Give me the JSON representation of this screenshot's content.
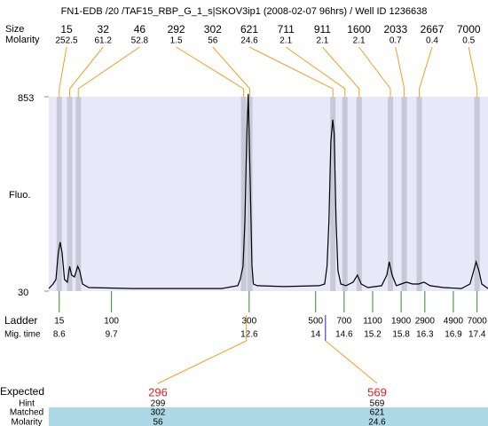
{
  "chart_data": {
    "type": "electropherogram",
    "title": "FN1-EDB /20 /TAF15_RBP_G_1_s|SKOV3ip1 (2008-02-07 96hrs) / Well ID 1236638",
    "y_label": "Fluo.",
    "ylim": [
      30,
      853
    ],
    "yticks": [
      30,
      853
    ],
    "xlim": [
      8.38,
      17.63
    ],
    "peaks": {
      "size_label": "Size",
      "molarity_label": "Molarity",
      "size": [
        15,
        32,
        46,
        292,
        302,
        621,
        711,
        911,
        1600,
        2033,
        2667,
        7000
      ],
      "molarity": [
        252.5,
        61.2,
        52.8,
        1.5,
        56,
        24.6,
        2.1,
        2.1,
        2.1,
        0.7,
        0.4,
        0.5
      ]
    },
    "ladder": {
      "label": "Ladder",
      "time_label": "Mig. time",
      "size": [
        15,
        100,
        300,
        500,
        700,
        1100,
        1900,
        2900,
        4900,
        7000
      ],
      "mig_time": [
        8.6,
        9.7,
        12.6,
        14,
        14.6,
        15.2,
        15.8,
        16.3,
        16.9,
        17.4
      ]
    },
    "trace": {
      "color": "#000000",
      "x": [
        8.38,
        8.47,
        8.53,
        8.58,
        8.62,
        8.66,
        8.71,
        8.77,
        8.82,
        8.86,
        8.92,
        8.99,
        9.03,
        9.09,
        9.22,
        10.15,
        11.09,
        12.02,
        12.36,
        12.41,
        12.47,
        12.51,
        12.55,
        12.58,
        12.62,
        12.66,
        12.69,
        12.77,
        13.33,
        14.08,
        14.19,
        14.24,
        14.28,
        14.32,
        14.36,
        14.39,
        14.43,
        14.47,
        14.53,
        14.64,
        14.79,
        14.88,
        14.96,
        15.1,
        15.39,
        15.5,
        15.55,
        15.61,
        15.7,
        15.8,
        15.91,
        16.04,
        16.17,
        16.28,
        16.41,
        16.69,
        17.07,
        17.25,
        17.33,
        17.38,
        17.44,
        17.5,
        17.63
      ],
      "values": [
        41,
        60,
        79,
        192,
        237,
        192,
        79,
        68,
        135,
        98,
        90,
        135,
        116,
        60,
        45,
        41,
        41,
        41,
        53,
        79,
        135,
        323,
        699,
        865,
        511,
        135,
        60,
        53,
        49,
        53,
        60,
        135,
        323,
        662,
        756,
        699,
        323,
        116,
        60,
        53,
        68,
        98,
        60,
        45,
        53,
        98,
        154,
        98,
        53,
        60,
        68,
        60,
        60,
        68,
        53,
        45,
        41,
        60,
        116,
        154,
        116,
        60,
        41
      ]
    },
    "expected": {
      "label": "Expected",
      "values": [
        296,
        569
      ],
      "rows": [
        {
          "name": "Hint",
          "values": [
            299,
            569
          ]
        },
        {
          "name": "Matched",
          "values": [
            302,
            621
          ]
        },
        {
          "name": "Molarity",
          "values": [
            56,
            24.6
          ]
        }
      ]
    }
  }
}
